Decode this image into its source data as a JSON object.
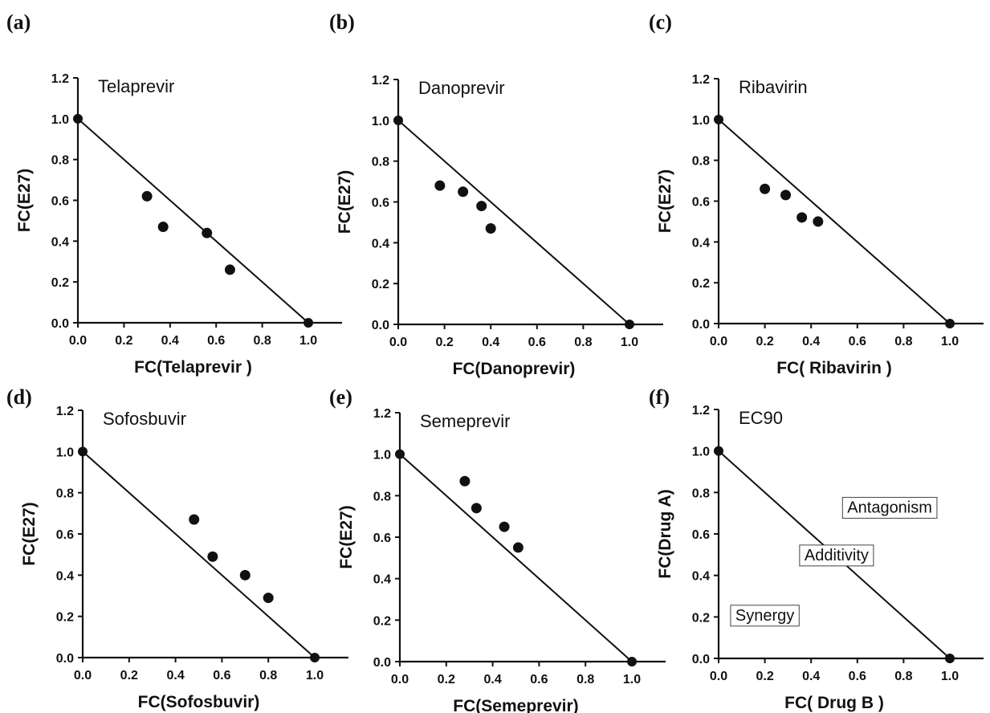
{
  "chart_data": [
    {
      "type": "scatter",
      "panel_label": "(a)",
      "title": "Telaprevir",
      "xlabel": "FC(Telaprevir )",
      "ylabel": "FC(E27)",
      "xlim": [
        0,
        1.0
      ],
      "ylim": [
        0,
        1.2
      ],
      "xticks": [
        "0.0",
        "0.2",
        "0.4",
        "0.6",
        "0.8",
        "1.0"
      ],
      "yticks": [
        "0.0",
        "0.2",
        "0.4",
        "0.6",
        "0.8",
        "1.0",
        "1.2"
      ],
      "line": [
        [
          0,
          1.0
        ],
        [
          1.0,
          0
        ]
      ],
      "points": [
        [
          0.3,
          0.62
        ],
        [
          0.37,
          0.47
        ],
        [
          0.56,
          0.44
        ],
        [
          0.66,
          0.26
        ]
      ],
      "grid": false
    },
    {
      "type": "scatter",
      "panel_label": "(b)",
      "title": "Danoprevir",
      "xlabel": "FC(Danoprevir)",
      "ylabel": "FC(E27)",
      "xlim": [
        0,
        1.0
      ],
      "ylim": [
        0,
        1.2
      ],
      "xticks": [
        "0.0",
        "0.2",
        "0.4",
        "0.6",
        "0.8",
        "1.0"
      ],
      "yticks": [
        "0.0",
        "0.2",
        "0.4",
        "0.6",
        "0.8",
        "1.0",
        "1.2"
      ],
      "line": [
        [
          0,
          1.0
        ],
        [
          1.0,
          0
        ]
      ],
      "points": [
        [
          0.18,
          0.68
        ],
        [
          0.28,
          0.65
        ],
        [
          0.36,
          0.58
        ],
        [
          0.4,
          0.47
        ]
      ],
      "grid": false
    },
    {
      "type": "scatter",
      "panel_label": "(c)",
      "title": "Ribavirin",
      "xlabel": "FC( Ribavirin )",
      "ylabel": "FC(E27)",
      "xlim": [
        0,
        1.0
      ],
      "ylim": [
        0,
        1.2
      ],
      "xticks": [
        "0.0",
        "0.2",
        "0.4",
        "0.6",
        "0.8",
        "1.0"
      ],
      "yticks": [
        "0.0",
        "0.2",
        "0.4",
        "0.6",
        "0.8",
        "1.0",
        "1.2"
      ],
      "line": [
        [
          0,
          1.0
        ],
        [
          1.0,
          0
        ]
      ],
      "points": [
        [
          0.2,
          0.66
        ],
        [
          0.29,
          0.63
        ],
        [
          0.36,
          0.52
        ],
        [
          0.43,
          0.5
        ]
      ],
      "grid": false
    },
    {
      "type": "scatter",
      "panel_label": "(d)",
      "title": "Sofosbuvir",
      "xlabel": "FC(Sofosbuvir)",
      "ylabel": "FC(E27)",
      "xlim": [
        0,
        1.0
      ],
      "ylim": [
        0,
        1.2
      ],
      "xticks": [
        "0.0",
        "0.2",
        "0.4",
        "0.6",
        "0.8",
        "1.0"
      ],
      "yticks": [
        "0.0",
        "0.2",
        "0.4",
        "0.6",
        "0.8",
        "1.0",
        "1.2"
      ],
      "line": [
        [
          0,
          1.0
        ],
        [
          1.0,
          0
        ]
      ],
      "points": [
        [
          0.48,
          0.67
        ],
        [
          0.56,
          0.49
        ],
        [
          0.7,
          0.4
        ],
        [
          0.8,
          0.29
        ]
      ],
      "grid": false
    },
    {
      "type": "scatter",
      "panel_label": "(e)",
      "title": "Semeprevir",
      "xlabel": "FC(Semeprevir)",
      "ylabel": "FC(E27)",
      "xlim": [
        0,
        1.0
      ],
      "ylim": [
        0,
        1.2
      ],
      "xticks": [
        "0.0",
        "0.2",
        "0.4",
        "0.6",
        "0.8",
        "1.0"
      ],
      "yticks": [
        "0.0",
        "0.2",
        "0.4",
        "0.6",
        "0.8",
        "1.0",
        "1.2"
      ],
      "line": [
        [
          0,
          1.0
        ],
        [
          1.0,
          0
        ]
      ],
      "points": [
        [
          0.28,
          0.87
        ],
        [
          0.33,
          0.74
        ],
        [
          0.45,
          0.65
        ],
        [
          0.51,
          0.55
        ]
      ],
      "grid": false
    },
    {
      "type": "scatter",
      "panel_label": "(f)",
      "title": "EC90",
      "xlabel": "FC( Drug B )",
      "ylabel": "FC(Drug A)",
      "xlim": [
        0,
        1.0
      ],
      "ylim": [
        0,
        1.2
      ],
      "xticks": [
        "0.0",
        "0.2",
        "0.4",
        "0.6",
        "0.8",
        "1.0"
      ],
      "yticks": [
        "0.0",
        "0.2",
        "0.4",
        "0.6",
        "0.8",
        "1.0",
        "1.2"
      ],
      "line": [
        [
          0,
          1.0
        ],
        [
          1.0,
          0
        ]
      ],
      "points": [],
      "regions": [
        {
          "label": "Antagonism",
          "x": 0.74,
          "y": 0.73
        },
        {
          "label": "Additivity",
          "x": 0.51,
          "y": 0.5
        },
        {
          "label": "Synergy",
          "x": 0.2,
          "y": 0.21
        }
      ],
      "grid": false
    }
  ]
}
